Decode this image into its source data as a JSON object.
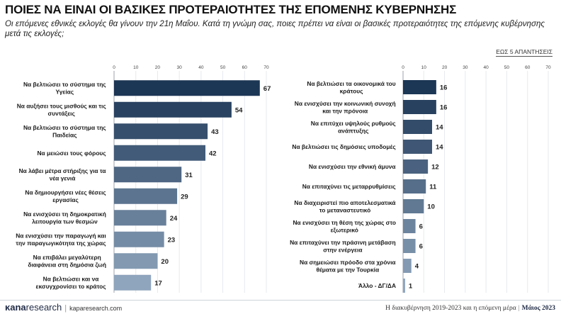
{
  "header": {
    "title": "ΠΟΙΕΣ ΝΑ ΕΙΝΑΙ ΟΙ ΒΑΣΙΚΕΣ ΠΡΟΤΕΡΑΙΟΤΗΤΕΣ ΤΗΣ ΕΠΟΜΕΝΗΣ ΚΥΒΕΡΝΗΣΗΣ",
    "subtitle": "Οι επόμενες εθνικές εκλογές θα γίνουν την 21η Μαΐου. Κατά τη γνώμη σας, ποιες πρέπει να είναι οι βασικές προτεραιότητες της επόμενης κυβέρνησης μετά τις εκλογές;",
    "note": "ΕΩΣ 5 ΑΠΑΝΤΗΣΕΙΣ"
  },
  "footer": {
    "logo_bold": "κana",
    "logo_rest": "research",
    "logo_sep": "|",
    "url": "kaparesearch.com",
    "right_text": "Η διακυβέρνηση 2019-2023 και η επόμενη μέρα",
    "right_sep": "|",
    "right_month": "Μάιος 2023"
  },
  "colors": {
    "bar_dark": "#1c3655",
    "bar_light": "#8fa5bd",
    "grid": "#e6e9ed"
  },
  "chart_data": [
    {
      "type": "bar",
      "orientation": "horizontal",
      "xlim": [
        0,
        70
      ],
      "ticks": [
        0,
        10,
        20,
        30,
        40,
        50,
        60,
        70
      ],
      "categories": [
        "Να βελτιώσει το σύστημα της Υγείας",
        "Να αυξήσει τους μισθούς και τις συντάξεις",
        "Να βελτιώσει το σύστημα της Παιδείας",
        "Να μειώσει τους φόρους",
        "Να λάβει μέτρα στήριξης για τα νέα γενιά",
        "Να δημιουργήσει νέες θέσεις εργασίας",
        "Να ενισχύσει τη δημοκρατική λειτουργία των θεσμών",
        "Να ενισχύσει την παραγωγή και την παραγωγικότητα της χώρας",
        "Να επιβάλει μεγαλύτερη διαφάνεια στη δημόσια ζωή",
        "Να βελτιώσει και να εκσυγχρονίσει το κράτος"
      ],
      "label_lines": [
        [
          "Να βελτιώσει το σύστημα της",
          "Υγείας"
        ],
        [
          "Να αυξήσει τους μισθούς και τις",
          "συντάξεις"
        ],
        [
          "Να βελτιώσει το σύστημα της",
          "Παιδείας"
        ],
        [
          "Να μειώσει τους φόρους"
        ],
        [
          "Να λάβει μέτρα στήριξης για τα",
          "νέα γενιά"
        ],
        [
          "Να δημιουργήσει νέες θέσεις",
          "εργασίας"
        ],
        [
          "Να ενισχύσει τη δημοκρατική",
          "λειτουργία των θεσμών"
        ],
        [
          "Να ενισχύσει την παραγωγή και",
          "την παραγωγικότητα της χώρας"
        ],
        [
          "Να επιβάλει μεγαλύτερη",
          "διαφάνεια στη δημόσια ζωή"
        ],
        [
          "Να βελτιώσει και να",
          "εκσυγχρονίσει το κράτος"
        ]
      ],
      "values": [
        67,
        54,
        43,
        42,
        31,
        29,
        24,
        23,
        20,
        17
      ]
    },
    {
      "type": "bar",
      "orientation": "horizontal",
      "xlim": [
        0,
        70
      ],
      "ticks": [
        0,
        10,
        20,
        30,
        40,
        50,
        60,
        70
      ],
      "categories": [
        "Να βελτιώσει τα οικονομικά του κράτους",
        "Να ενισχύσει την κοινωνική συνοχή και την πρόνοια",
        "Να επιτύχει υψηλούς ρυθμούς ανάπτυξης",
        "Να βελτιώσει τις δημόσιες υποδομές",
        "Να ενισχύσει την εθνική άμυνα",
        "Να επιταχύνει τις μεταρρυθμίσεις",
        "Να διαχειριστεί πιο αποτελεσματικά το μεταναστευτικό",
        "Να ενισχύσει τη θέση της χώρας στο εξωτερικό",
        "Να επιταχύνει την πράσινη μετάβαση στην ενέργεια",
        "Να σημειώσει πρόοδο στα χρόνια θέματα με την Τουρκία",
        "Άλλο - ΔΓ/ΔΑ"
      ],
      "label_lines": [
        [
          "Να βελτιώσει τα οικονομικά του",
          "κράτους"
        ],
        [
          "Να ενισχύσει την κοινωνική συνοχή",
          "και την πρόνοια"
        ],
        [
          "Να επιτύχει υψηλούς ρυθμούς",
          "ανάπτυξης"
        ],
        [
          "Να βελτιώσει τις δημόσιες υποδομές"
        ],
        [
          "Να ενισχύσει την εθνική άμυνα"
        ],
        [
          "Να επιταχύνει τις μεταρρυθμίσεις"
        ],
        [
          "Να διαχειριστεί πιο αποτελεσματικά",
          "το μεταναστευτικό"
        ],
        [
          "Να ενισχύσει τη θέση της χώρας στο",
          "εξωτερικό"
        ],
        [
          "Να επιταχύνει την πράσινη μετάβαση",
          "στην ενέργεια"
        ],
        [
          "Να σημειώσει πρόοδο στα χρόνια",
          "θέματα με την Τουρκία"
        ],
        [
          "Άλλο - ΔΓ/ΔΑ"
        ]
      ],
      "values": [
        16,
        16,
        14,
        14,
        12,
        11,
        10,
        6,
        6,
        4,
        1
      ]
    }
  ]
}
